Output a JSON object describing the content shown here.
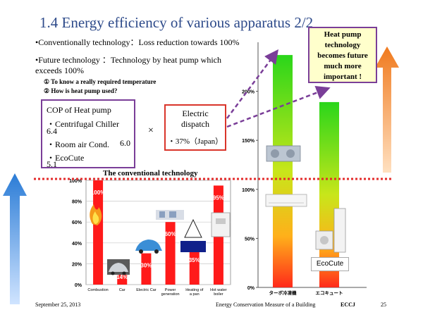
{
  "slide": {
    "title": "1.4  Energy efficiency of various apparatus 2/2",
    "bullet1": "•Conventionally technology：Loss reduction towards 100%",
    "bullet2": "•Future technology  ：Technology by heat pump which exceeds 100%",
    "sub1": "①   To know a really required temperature",
    "sub2": "②   How is heat pump used?"
  },
  "cop_box": {
    "title": "COP of Heat pump",
    "item1_label": "・Centrifugal Chiller",
    "item1_value": "6.4",
    "item2_label": "・Room air Cond.",
    "item2_value": "6.0",
    "item3_label": "・EcoCute",
    "item3_value": "5.1"
  },
  "multiply_sign": "×",
  "dispatch_box": {
    "line1": "Electric",
    "line2": "dispatch",
    "line3": "・37%（Japan）"
  },
  "heatpump_box": {
    "line1": "Heat pump",
    "line2": "technology",
    "line3": "becomes future",
    "line4": "much more",
    "line5": "important !"
  },
  "conventional_label": "The conventional technology",
  "ecocute_label": "EcoCute",
  "footer": {
    "date": "September 25, 2013",
    "center": "Energy Conservation Measure of a Building",
    "org": "ECCJ",
    "page": "25"
  },
  "colors": {
    "title": "#2d4a8a",
    "purple": "#7a3e98",
    "red": "#d9352b",
    "orange": "#f07a1e",
    "blue": "#2b7cd6"
  },
  "chart_data": [
    {
      "type": "bar",
      "categories": [
        "Combustion",
        "Car",
        "Electric Car",
        "Power generation",
        "Heating of a pan",
        "Hot water boiler"
      ],
      "values": [
        100,
        14,
        30,
        60,
        35,
        95
      ],
      "data_labels": [
        "100%",
        "14%",
        "30%",
        "60%",
        "35%",
        "95%"
      ],
      "ylim": [
        0,
        100
      ],
      "yticks": [
        "0%",
        "20%",
        "40%",
        "60%",
        "80%",
        "100%"
      ],
      "grid": true,
      "bar_color": "#ff1a1a"
    },
    {
      "type": "bar",
      "categories": [
        "ターボ冷凍機",
        "エコキュート"
      ],
      "values": [
        237,
        189
      ],
      "ylim": [
        0,
        250
      ],
      "yticks": [
        "0%",
        "50%",
        "100%",
        "150%",
        "200%"
      ],
      "grid": false,
      "gradient": [
        "#ff2a1a",
        "#ffd41a",
        "#2ad61a"
      ]
    }
  ]
}
